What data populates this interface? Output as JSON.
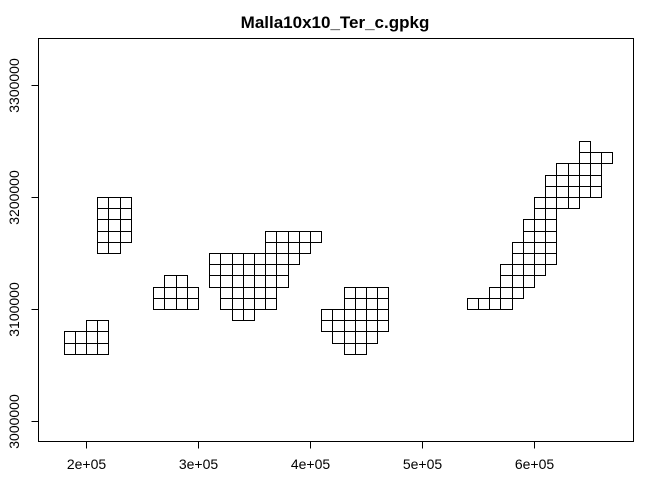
{
  "chart_data": {
    "type": "map-grid",
    "title": "Malla10x10_Ter_c.gpkg",
    "xlabel": "",
    "ylabel": "",
    "xlim": [
      150000,
      680000
    ],
    "ylim": [
      2970000,
      3340000
    ],
    "x_ticks": [
      {
        "value": 200000,
        "label": "2e+05"
      },
      {
        "value": 300000,
        "label": "3e+05"
      },
      {
        "value": 400000,
        "label": "4e+05"
      },
      {
        "value": 500000,
        "label": "5e+05"
      },
      {
        "value": 600000,
        "label": "6e+05"
      }
    ],
    "y_ticks": [
      {
        "value": 3000000,
        "label": "3000000"
      },
      {
        "value": 3100000,
        "label": "3100000"
      },
      {
        "value": 3200000,
        "label": "3200000"
      },
      {
        "value": 3300000,
        "label": "3300000"
      }
    ],
    "cell_size_m": 10000,
    "grid_rows": [
      {
        "y": 3060000,
        "x_from": 180000,
        "x_to": 210000
      },
      {
        "y": 3070000,
        "x_from": 180000,
        "x_to": 210000
      },
      {
        "y": 3080000,
        "x_from": 200000,
        "x_to": 210000
      },
      {
        "y": 3150000,
        "x_from": 210000,
        "x_to": 220000
      },
      {
        "y": 3160000,
        "x_from": 210000,
        "x_to": 230000
      },
      {
        "y": 3170000,
        "x_from": 210000,
        "x_to": 230000
      },
      {
        "y": 3180000,
        "x_from": 210000,
        "x_to": 230000
      },
      {
        "y": 3190000,
        "x_from": 210000,
        "x_to": 230000
      },
      {
        "y": 3100000,
        "x_from": 260000,
        "x_to": 290000
      },
      {
        "y": 3110000,
        "x_from": 260000,
        "x_to": 290000
      },
      {
        "y": 3120000,
        "x_from": 270000,
        "x_to": 280000
      },
      {
        "y": 3090000,
        "x_from": 330000,
        "x_to": 340000
      },
      {
        "y": 3100000,
        "x_from": 320000,
        "x_to": 360000
      },
      {
        "y": 3110000,
        "x_from": 320000,
        "x_to": 360000
      },
      {
        "y": 3120000,
        "x_from": 310000,
        "x_to": 370000
      },
      {
        "y": 3130000,
        "x_from": 310000,
        "x_to": 370000
      },
      {
        "y": 3140000,
        "x_from": 310000,
        "x_to": 380000
      },
      {
        "y": 3150000,
        "x_from": 360000,
        "x_to": 390000
      },
      {
        "y": 3160000,
        "x_from": 360000,
        "x_to": 400000
      },
      {
        "y": 3060000,
        "x_from": 430000,
        "x_to": 440000
      },
      {
        "y": 3070000,
        "x_from": 420000,
        "x_to": 450000
      },
      {
        "y": 3080000,
        "x_from": 410000,
        "x_to": 460000
      },
      {
        "y": 3090000,
        "x_from": 410000,
        "x_to": 460000
      },
      {
        "y": 3100000,
        "x_from": 430000,
        "x_to": 460000
      },
      {
        "y": 3110000,
        "x_from": 430000,
        "x_to": 460000
      },
      {
        "y": 3100000,
        "x_from": 540000,
        "x_to": 570000
      },
      {
        "y": 3110000,
        "x_from": 560000,
        "x_to": 580000
      },
      {
        "y": 3120000,
        "x_from": 570000,
        "x_to": 590000
      },
      {
        "y": 3130000,
        "x_from": 570000,
        "x_to": 600000
      },
      {
        "y": 3140000,
        "x_from": 580000,
        "x_to": 610000
      },
      {
        "y": 3150000,
        "x_from": 580000,
        "x_to": 610000
      },
      {
        "y": 3160000,
        "x_from": 590000,
        "x_to": 610000
      },
      {
        "y": 3170000,
        "x_from": 590000,
        "x_to": 610000
      },
      {
        "y": 3180000,
        "x_from": 600000,
        "x_to": 610000
      },
      {
        "y": 3190000,
        "x_from": 600000,
        "x_to": 630000
      },
      {
        "y": 3200000,
        "x_from": 610000,
        "x_to": 650000
      },
      {
        "y": 3210000,
        "x_from": 610000,
        "x_to": 650000
      },
      {
        "y": 3220000,
        "x_from": 620000,
        "x_to": 650000
      },
      {
        "y": 3230000,
        "x_from": 640000,
        "x_to": 660000
      },
      {
        "y": 3240000,
        "x_from": 640000,
        "x_to": 640000
      }
    ]
  }
}
